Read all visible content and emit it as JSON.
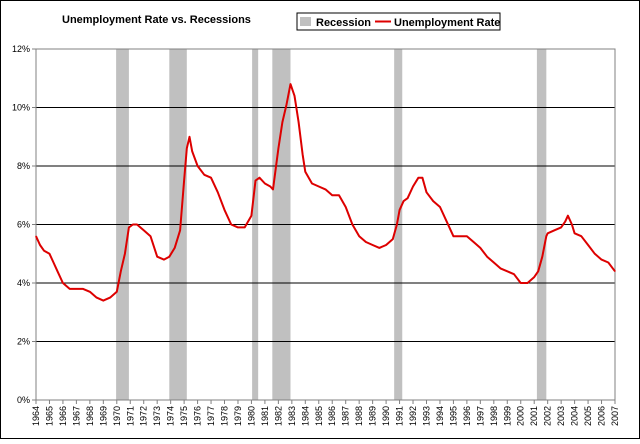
{
  "chart_data": {
    "type": "line",
    "title": "Unemployment Rate vs. Recessions",
    "xlabel": "",
    "ylabel": "",
    "x_range": [
      1964,
      2007
    ],
    "ylim": [
      0,
      12
    ],
    "grid": true,
    "legend_position": "top",
    "y_ticks": [
      "0%",
      "2%",
      "4%",
      "6%",
      "8%",
      "10%",
      "12%"
    ],
    "x_ticks": [
      "1964",
      "1965",
      "1966",
      "1967",
      "1968",
      "1969",
      "1970",
      "1971",
      "1972",
      "1973",
      "1974",
      "1975",
      "1976",
      "1977",
      "1978",
      "1979",
      "1980",
      "1981",
      "1982",
      "1983",
      "1984",
      "1985",
      "1986",
      "1987",
      "1988",
      "1989",
      "1990",
      "1991",
      "1992",
      "1993",
      "1994",
      "1995",
      "1996",
      "1997",
      "1998",
      "1999",
      "2000",
      "2001",
      "2002",
      "2003",
      "2004",
      "2005",
      "2006",
      "2007"
    ],
    "colors": {
      "line": "#dd0000",
      "recession": "#c0c0c0",
      "grid": "#000000",
      "frame": "#808080"
    },
    "recessions": {
      "name": "Recession",
      "periods": [
        [
          1969.95,
          1970.9
        ],
        [
          1973.9,
          1975.2
        ],
        [
          1980.05,
          1980.5
        ],
        [
          1981.55,
          1982.9
        ],
        [
          1990.6,
          1991.2
        ],
        [
          2001.2,
          2001.9
        ]
      ]
    },
    "series": [
      {
        "name": "Unemployment Rate",
        "x": [
          1964,
          1964.3,
          1964.6,
          1965,
          1965.3,
          1965.6,
          1966,
          1966.5,
          1967,
          1967.5,
          1968,
          1968.5,
          1969,
          1969.5,
          1970,
          1970.3,
          1970.6,
          1970.9,
          1971.2,
          1971.5,
          1972,
          1972.5,
          1973,
          1973.5,
          1973.9,
          1974.3,
          1974.7,
          1975,
          1975.2,
          1975.4,
          1975.6,
          1976,
          1976.5,
          1977,
          1977.5,
          1978,
          1978.5,
          1979,
          1979.5,
          1980,
          1980.3,
          1980.6,
          1981,
          1981.4,
          1981.6,
          1981.8,
          1982,
          1982.3,
          1982.6,
          1982.9,
          1983.2,
          1983.5,
          1983.8,
          1984,
          1984.5,
          1985,
          1985.5,
          1986,
          1986.5,
          1987,
          1987.5,
          1988,
          1988.5,
          1989,
          1989.5,
          1990,
          1990.5,
          1990.8,
          1991,
          1991.3,
          1991.6,
          1992,
          1992.4,
          1992.7,
          1993,
          1993.5,
          1994,
          1994.5,
          1995,
          1995.5,
          1996,
          1996.5,
          1997,
          1997.5,
          1998,
          1998.5,
          1999,
          1999.5,
          2000,
          2000.5,
          2001,
          2001.3,
          2001.6,
          2001.9,
          2002,
          2002.5,
          2003,
          2003.3,
          2003.5,
          2003.8,
          2004,
          2004.5,
          2005,
          2005.5,
          2006,
          2006.5,
          2007
        ],
        "y": [
          5.6,
          5.3,
          5.1,
          5.0,
          4.7,
          4.4,
          4.0,
          3.8,
          3.8,
          3.8,
          3.7,
          3.5,
          3.4,
          3.5,
          3.7,
          4.4,
          5.0,
          5.9,
          6.0,
          6.0,
          5.8,
          5.6,
          4.9,
          4.8,
          4.9,
          5.2,
          5.8,
          7.5,
          8.6,
          9.0,
          8.5,
          8.0,
          7.7,
          7.6,
          7.1,
          6.5,
          6.0,
          5.9,
          5.9,
          6.3,
          7.5,
          7.6,
          7.4,
          7.3,
          7.2,
          7.9,
          8.6,
          9.5,
          10.1,
          10.8,
          10.4,
          9.5,
          8.4,
          7.8,
          7.4,
          7.3,
          7.2,
          7.0,
          7.0,
          6.6,
          6.0,
          5.6,
          5.4,
          5.3,
          5.2,
          5.3,
          5.5,
          6.0,
          6.5,
          6.8,
          6.9,
          7.3,
          7.6,
          7.6,
          7.1,
          6.8,
          6.6,
          6.1,
          5.6,
          5.6,
          5.6,
          5.4,
          5.2,
          4.9,
          4.7,
          4.5,
          4.4,
          4.3,
          4.0,
          4.0,
          4.2,
          4.4,
          4.9,
          5.6,
          5.7,
          5.8,
          5.9,
          6.1,
          6.3,
          6.0,
          5.7,
          5.6,
          5.3,
          5.0,
          4.8,
          4.7,
          4.4
        ]
      }
    ]
  }
}
